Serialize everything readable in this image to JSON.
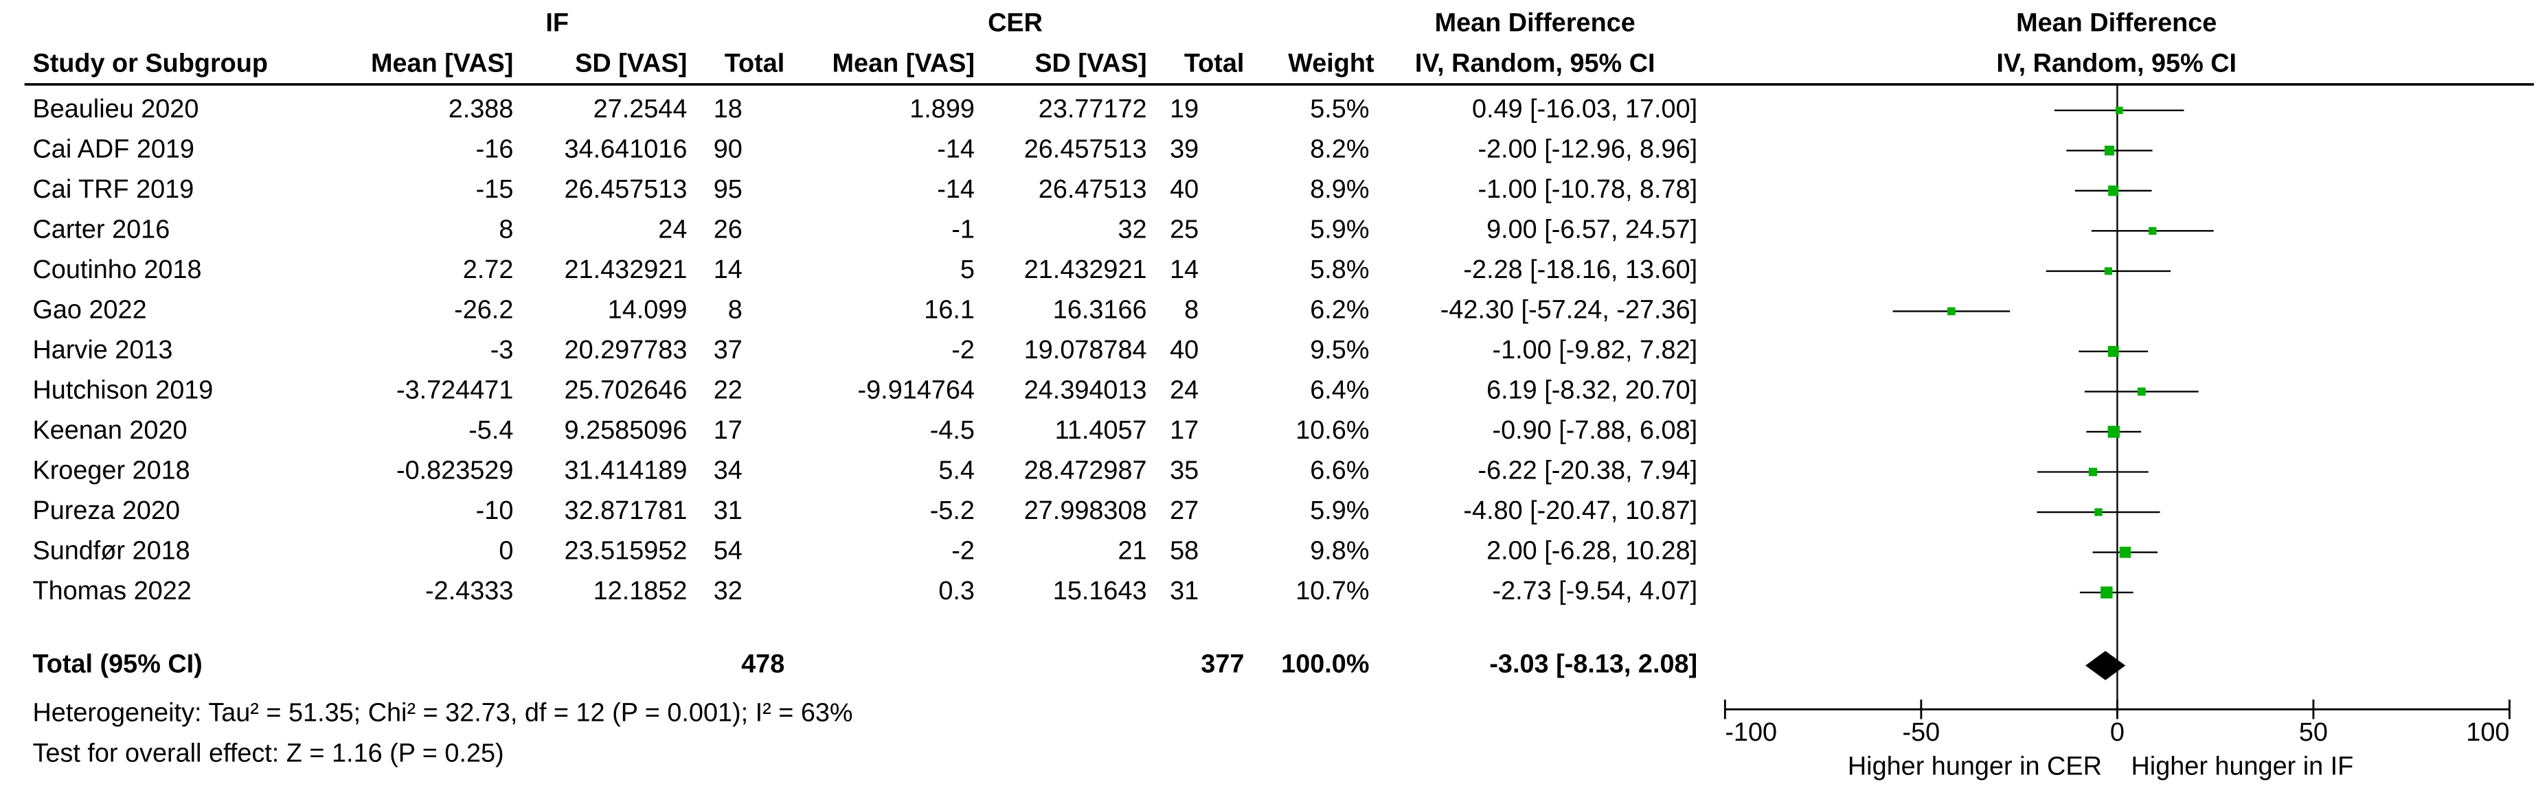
{
  "chart_data": {
    "type": "forest",
    "title": "Mean Difference",
    "subtitle": "IV, Random, 95% CI",
    "categories": [
      "Beaulieu 2020",
      "Cai ADF 2019",
      "Cai TRF 2019",
      "Carter 2016",
      "Coutinho 2018",
      "Gao 2022",
      "Harvie 2013",
      "Hutchison 2019",
      "Keenan 2020",
      "Kroeger 2018",
      "Pureza 2020",
      "Sundfør 2018",
      "Thomas 2022"
    ],
    "values": [
      0.49,
      -2.0,
      -1.0,
      9.0,
      -2.28,
      -42.3,
      -1.0,
      6.19,
      -0.9,
      -6.22,
      -4.8,
      2.0,
      -2.73
    ],
    "lower": [
      -16.03,
      -12.96,
      -10.78,
      -6.57,
      -18.16,
      -57.24,
      -9.82,
      -8.32,
      -7.88,
      -20.38,
      -20.47,
      -6.28,
      -9.54
    ],
    "upper": [
      17.0,
      8.96,
      8.78,
      24.57,
      13.6,
      -27.36,
      7.82,
      20.7,
      6.08,
      7.94,
      10.87,
      10.28,
      4.07
    ],
    "value_labels": [
      "0.49 [-16.03, 17.00]",
      "-2.00 [-12.96, 8.96]",
      "-1.00 [-10.78, 8.78]",
      "9.00 [-6.57, 24.57]",
      "-2.28 [-18.16, 13.60]",
      "-42.30 [-57.24, -27.36]",
      "-1.00 [-9.82, 7.82]",
      "6.19 [-8.32, 20.70]",
      "-0.90 [-7.88, 6.08]",
      "-6.22 [-20.38, 7.94]",
      "-4.80 [-20.47, 10.87]",
      "2.00 [-6.28, 10.28]",
      "-2.73 [-9.54, 4.07]"
    ],
    "weights": [
      5.5,
      8.2,
      8.9,
      5.9,
      5.8,
      6.2,
      9.5,
      6.4,
      10.6,
      6.6,
      5.9,
      9.8,
      10.7
    ],
    "weight_labels": [
      "5.5%",
      "8.2%",
      "8.9%",
      "5.9%",
      "5.8%",
      "6.2%",
      "9.5%",
      "6.4%",
      "10.6%",
      "6.6%",
      "5.9%",
      "9.8%",
      "10.7%"
    ],
    "color": "#00b000",
    "pooled": {
      "value": -3.03,
      "lower": -8.13,
      "upper": 2.08,
      "value_label": "-3.03 [-8.13, 2.08]"
    },
    "xlim": [
      -100,
      100
    ],
    "xticks": [
      -100,
      -50,
      0,
      50,
      100
    ],
    "x_label_left": "Higher hunger in CER",
    "x_label_right": "Higher hunger in IF"
  },
  "table": {
    "group_headers": [
      "IF",
      "CER",
      "Mean Difference"
    ],
    "columns": [
      "Study or Subgroup",
      "Mean [VAS]",
      "SD [VAS]",
      "Total",
      "Mean [VAS]",
      "SD [VAS]",
      "Total",
      "Weight",
      "IV, Random, 95% CI"
    ],
    "rows": [
      [
        "2.388",
        "27.2544",
        "18",
        "1.899",
        "23.77172",
        "19"
      ],
      [
        "-16",
        "34.641016",
        "90",
        "-14",
        "26.457513",
        "39"
      ],
      [
        "-15",
        "26.457513",
        "95",
        "-14",
        "26.47513",
        "40"
      ],
      [
        "8",
        "24",
        "26",
        "-1",
        "32",
        "25"
      ],
      [
        "2.72",
        "21.432921",
        "14",
        "5",
        "21.432921",
        "14"
      ],
      [
        "-26.2",
        "14.099",
        "8",
        "16.1",
        "16.3166",
        "8"
      ],
      [
        "-3",
        "20.297783",
        "37",
        "-2",
        "19.078784",
        "40"
      ],
      [
        "-3.724471",
        "25.702646",
        "22",
        "-9.914764",
        "24.394013",
        "24"
      ],
      [
        "-5.4",
        "9.2585096",
        "17",
        "-4.5",
        "11.4057",
        "17"
      ],
      [
        "-0.823529",
        "31.414189",
        "34",
        "5.4",
        "28.472987",
        "35"
      ],
      [
        "-10",
        "32.871781",
        "31",
        "-5.2",
        "27.998308",
        "27"
      ],
      [
        "0",
        "23.515952",
        "54",
        "-2",
        "21",
        "58"
      ],
      [
        "-2.4333",
        "12.1852",
        "32",
        "0.3",
        "15.1643",
        "31"
      ]
    ],
    "total": {
      "label": "Total (95% CI)",
      "if_total": "478",
      "cer_total": "377",
      "weight": "100.0%"
    },
    "notes": [
      "Heterogeneity: Tau² = 51.35; Chi² = 32.73, df = 12 (P = 0.001); I² = 63%",
      "Test for overall effect: Z = 1.16 (P = 0.25)"
    ]
  }
}
